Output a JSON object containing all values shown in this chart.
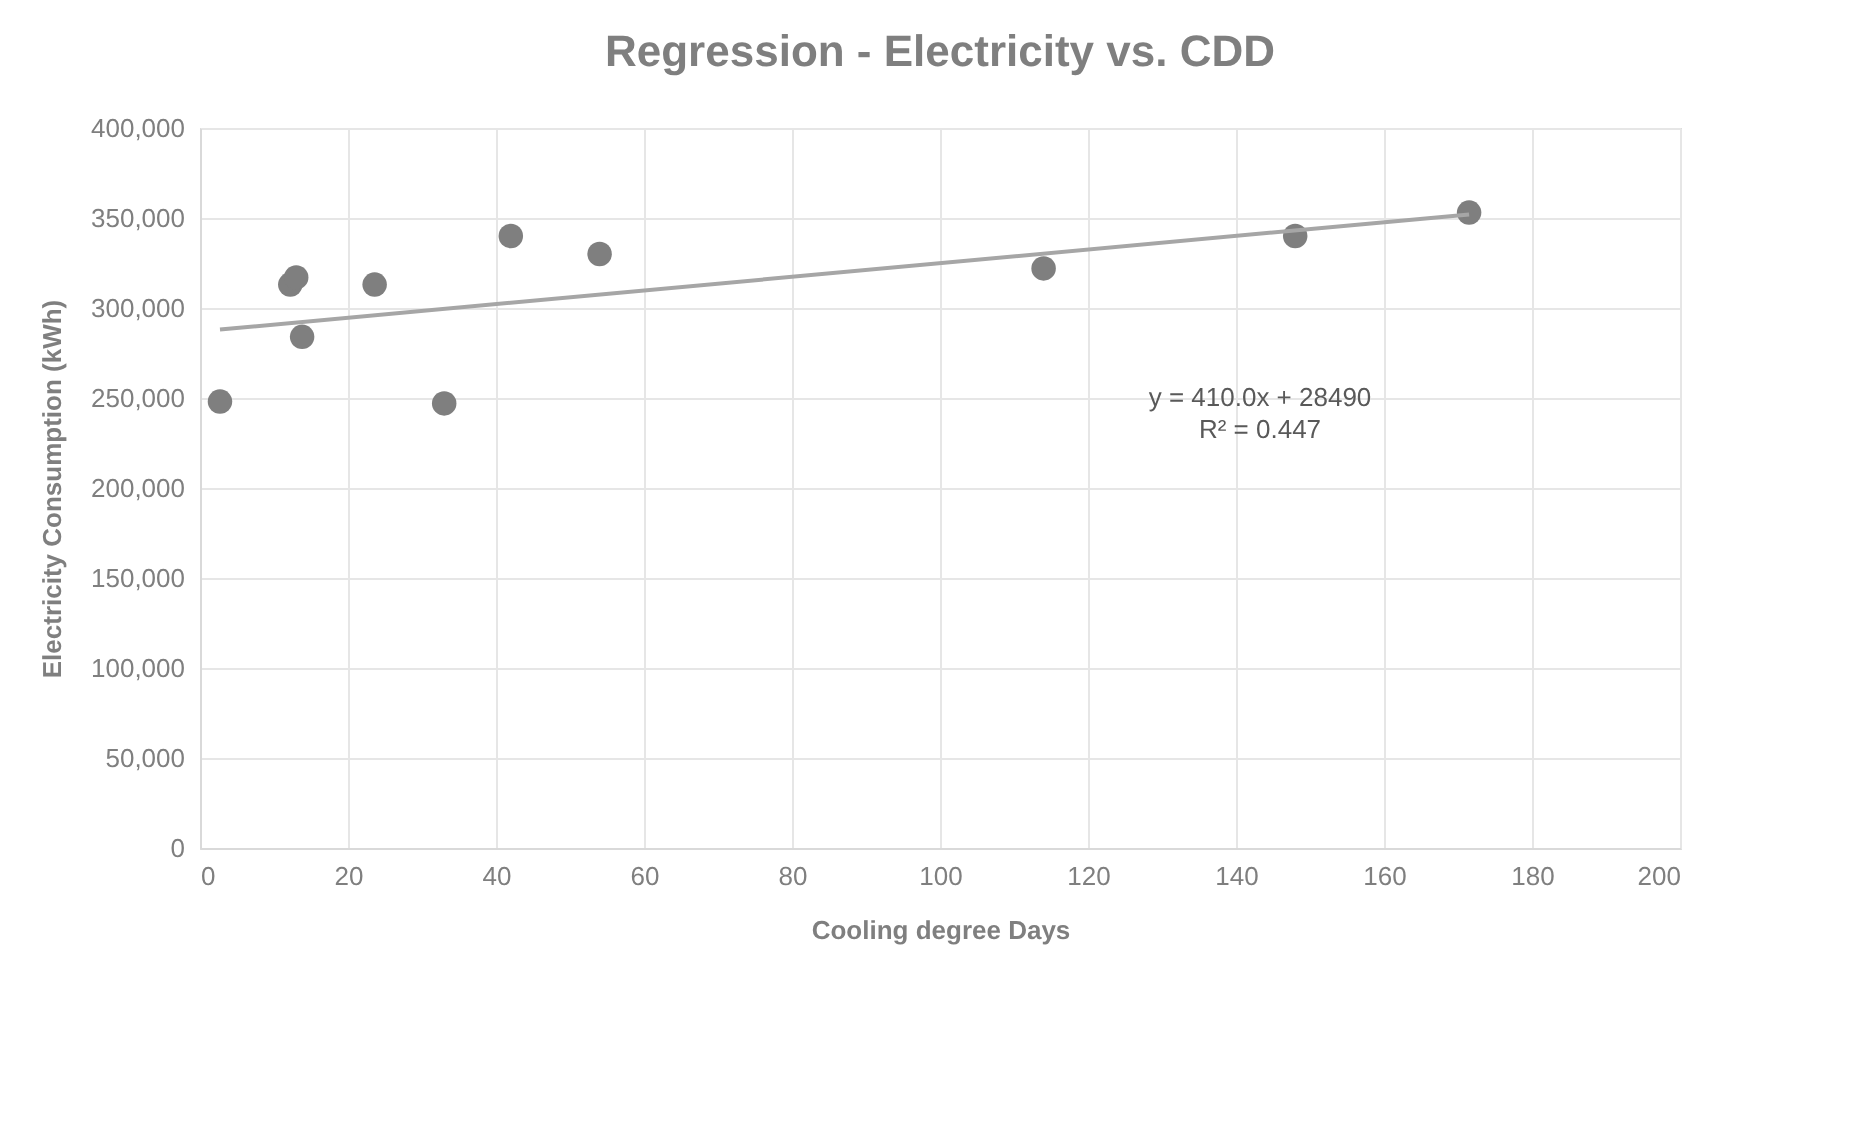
{
  "chart_data": {
    "type": "scatter",
    "title": "Regression - Electricity vs. CDD",
    "xlabel": "Cooling degree Days",
    "ylabel": "Electricity Consumption (kWh)",
    "xlim": [
      0,
      200
    ],
    "xticks": [
      0,
      20,
      40,
      60,
      80,
      100,
      120,
      140,
      160,
      180,
      200
    ],
    "ylim": [
      0,
      400000
    ],
    "yticks": [
      {
        "value": 0,
        "label": "0"
      },
      {
        "value": 50000,
        "label": "50,000"
      },
      {
        "value": 100000,
        "label": "100,000"
      },
      {
        "value": 150000,
        "label": "150,000"
      },
      {
        "value": 200000,
        "label": "200,000"
      },
      {
        "value": 250000,
        "label": "250,000"
      },
      {
        "value": 300000,
        "label": "300,000"
      },
      {
        "value": 350000,
        "label": "350,000"
      },
      {
        "value": 400000,
        "label": "400,000"
      }
    ],
    "grid": true,
    "series": [
      {
        "marker": "circle",
        "color": "#7f7f7f",
        "x": [
          2.7,
          12.2,
          13,
          13.8,
          23.6,
          33,
          42,
          54,
          114,
          148,
          171.5
        ],
        "values": [
          248000,
          313000,
          317000,
          284000,
          313000,
          247000,
          340000,
          330000,
          322000,
          340000,
          353000
        ]
      },
      {
        "type": "line",
        "marker": "none",
        "color": "#a6a6a6",
        "x": [
          2.7,
          171.5
        ],
        "values": [
          288000,
          352000
        ]
      }
    ],
    "annotations": [
      "y = 410.0x + 28490",
      "R² = 0.447"
    ]
  }
}
